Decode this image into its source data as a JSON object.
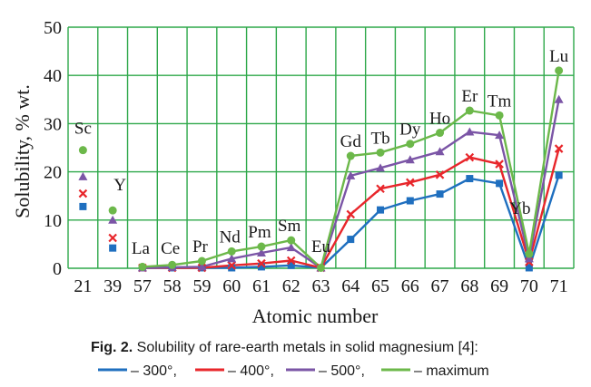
{
  "chart_data": {
    "type": "line",
    "ylabel": "Solubility, % wt.",
    "xlabel": "Atomic number",
    "ylim": [
      0,
      50
    ],
    "yticks": [
      "0",
      "10",
      "20",
      "30",
      "40",
      "50"
    ],
    "grid": true,
    "categories": [
      "21",
      "39",
      "57",
      "58",
      "59",
      "60",
      "61",
      "62",
      "63",
      "64",
      "65",
      "66",
      "67",
      "68",
      "69",
      "70",
      "71"
    ],
    "element_labels": [
      "Sc",
      "Y",
      "La",
      "Ce",
      "Pr",
      "Nd",
      "Pm",
      "Sm",
      "Eu",
      "Gd",
      "Tb",
      "Dy",
      "Ho",
      "Er",
      "Tm",
      "Yb",
      "Lu"
    ],
    "series": [
      {
        "name": "– 300°",
        "color": "#1f6fbf",
        "marker": "square",
        "values": [
          12.8,
          4.2,
          0.1,
          0.1,
          0.1,
          0.1,
          0.3,
          0.6,
          0.1,
          6.0,
          12.1,
          14.0,
          15.4,
          18.6,
          17.6,
          0.1,
          19.3
        ]
      },
      {
        "name": "– 400°",
        "color": "#e8262b",
        "marker": "x",
        "values": [
          15.5,
          6.3,
          0.1,
          0.1,
          0.1,
          0.6,
          1.0,
          1.6,
          0.1,
          11.2,
          16.5,
          17.8,
          19.4,
          23.0,
          21.6,
          1.3,
          24.8
        ]
      },
      {
        "name": "– 500°",
        "color": "#7b55a6",
        "marker": "triangle",
        "values": [
          19.0,
          10.0,
          0.1,
          0.2,
          0.3,
          2.0,
          3.2,
          4.3,
          0.1,
          19.2,
          20.8,
          22.5,
          24.2,
          28.3,
          27.6,
          2.0,
          35.0
        ]
      },
      {
        "name": "– maximum",
        "color": "#6cb84a",
        "marker": "circle",
        "values": [
          24.5,
          12.0,
          0.3,
          0.7,
          1.5,
          3.5,
          4.5,
          5.8,
          0.1,
          23.3,
          24.0,
          25.8,
          28.1,
          32.7,
          31.7,
          3.0,
          41.0
        ]
      }
    ]
  },
  "caption": {
    "fig_label": "Fig. 2.",
    "text": " Solubility of rare-earth metals in solid magnesium [4]:"
  },
  "legend": {
    "items": [
      "– 300°,",
      "– 400°,",
      "– 500°,",
      "– maximum"
    ]
  }
}
